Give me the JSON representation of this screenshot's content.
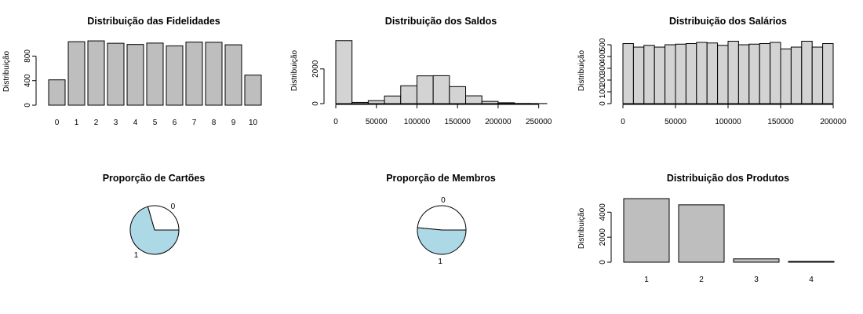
{
  "chart_data": [
    {
      "id": "fidelidades",
      "type": "bar",
      "title": "Distribuição das Fidelidades",
      "ylabel": "Distribuição",
      "xlabel": "",
      "categories": [
        "0",
        "1",
        "2",
        "3",
        "4",
        "5",
        "6",
        "7",
        "8",
        "9",
        "10"
      ],
      "values": [
        413,
        1035,
        1048,
        1009,
        989,
        1012,
        967,
        1028,
        1025,
        984,
        490
      ],
      "ylim": [
        0,
        1100
      ],
      "yticks": [
        0,
        400,
        800
      ],
      "bar_color": "#bebebe"
    },
    {
      "id": "saldos",
      "type": "histogram",
      "title": "Distribuição dos Saldos",
      "ylabel": "Distribuição",
      "xlabel": "",
      "bin_width": 20000,
      "bin_start": 0,
      "values": [
        3630,
        70,
        170,
        440,
        1030,
        1600,
        1610,
        980,
        450,
        130,
        50,
        10,
        5
      ],
      "xlim": [
        0,
        260000
      ],
      "xticks": [
        0,
        50000,
        100000,
        150000,
        200000,
        250000
      ],
      "ylim": [
        0,
        3800
      ],
      "yticks": [
        0,
        2000
      ],
      "bar_color": "#d3d3d3"
    },
    {
      "id": "salarios",
      "type": "histogram",
      "title": "Distribuição dos Salários",
      "ylabel": "Distribuição",
      "xlabel": "",
      "bin_width": 10000,
      "bin_start": 0,
      "values": [
        510,
        480,
        495,
        480,
        500,
        505,
        510,
        520,
        515,
        495,
        530,
        500,
        505,
        510,
        520,
        465,
        480,
        530,
        480,
        510
      ],
      "xlim": [
        0,
        200000
      ],
      "xticks": [
        0,
        50000,
        100000,
        150000,
        200000
      ],
      "ylim": [
        0,
        560
      ],
      "yticks": [
        0,
        100,
        200,
        300,
        400,
        500
      ],
      "bar_color": "#d3d3d3"
    },
    {
      "id": "cartoes",
      "type": "pie",
      "title": "Proporção de Cartões",
      "labels": [
        "0",
        "1"
      ],
      "values": [
        2945,
        7055
      ],
      "colors": [
        "#ffffff",
        "#add8e6"
      ]
    },
    {
      "id": "membros",
      "type": "pie",
      "title": "Proporção de Membros",
      "labels": [
        "0",
        "1"
      ],
      "values": [
        4849,
        5151
      ],
      "colors": [
        "#ffffff",
        "#add8e6"
      ]
    },
    {
      "id": "produtos",
      "type": "bar",
      "title": "Distribuição dos Produtos",
      "ylabel": "Distribuição",
      "xlabel": "",
      "categories": [
        "1",
        "2",
        "3",
        "4"
      ],
      "values": [
        5084,
        4590,
        266,
        60
      ],
      "ylim": [
        0,
        5400
      ],
      "yticks": [
        0,
        2000,
        4000
      ],
      "bar_color": "#bebebe"
    }
  ]
}
